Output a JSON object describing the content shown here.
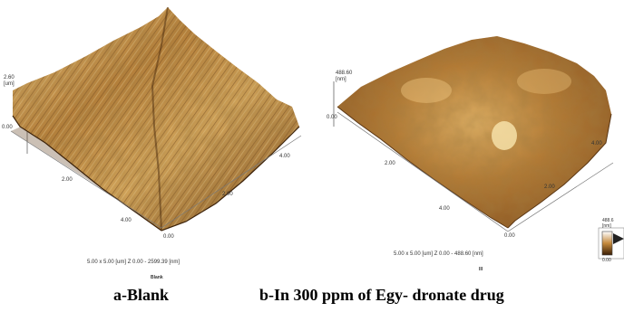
{
  "panel_a": {
    "z_top": "2.60",
    "z_unit": "[um]",
    "z_zero": "0.00",
    "x_2": "2.00",
    "x_4": "4.00",
    "y_4": "4.00",
    "y_2": "2.00",
    "y_0": "0.00",
    "scan_info": "5.00 x 5.00 [um]   Z 0.00  -  2599.39 [nm]",
    "small_title": "Blank",
    "caption": "a-Blank"
  },
  "panel_b": {
    "z_top": "488.60",
    "z_unit": "[nm]",
    "z_zero": "0.00",
    "x_2": "2.00",
    "x_4": "4.00",
    "y_4": "4.00",
    "y_2": "2.00",
    "y_0": "0.00",
    "scale_top": "488.6",
    "scale_unit": "[nm]",
    "scale_bottom": "0.00",
    "scan_info": "5.00 x 5.00 [um]   Z 0.00  -  488.60 [nm]",
    "small_title": "III",
    "caption": "b-In 300 ppm of Egy- dronate drug"
  },
  "colors": {
    "surface_light": "#f4e7b8",
    "surface_mid": "#c89046",
    "surface_dark": "#6a3c14"
  }
}
